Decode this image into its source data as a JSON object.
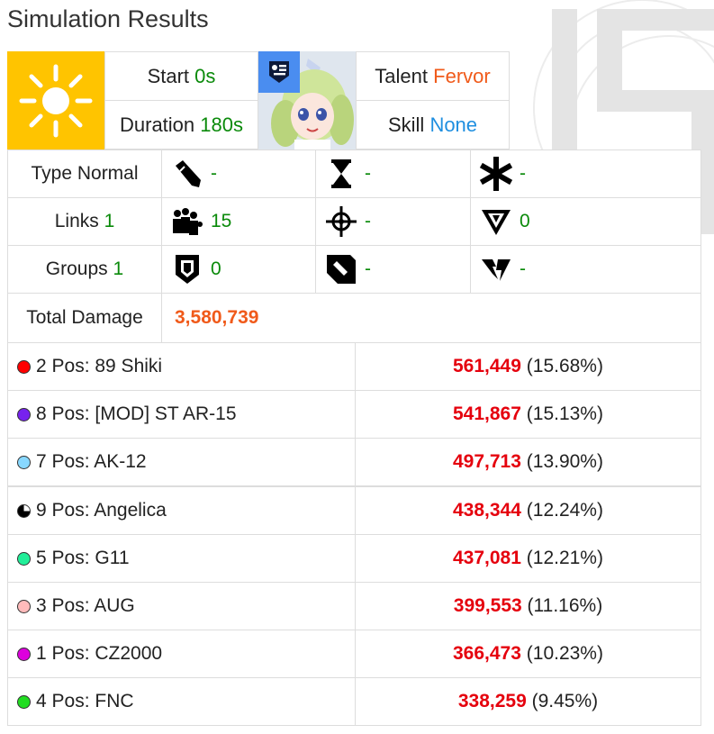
{
  "title": "Simulation Results",
  "header": {
    "start_label": "Start",
    "start_value": "0s",
    "duration_label": "Duration",
    "duration_value": "180s",
    "talent_label": "Talent",
    "talent_value": "Fervor",
    "skill_label": "Skill",
    "skill_value": "None",
    "sun_icon": "sun-icon",
    "rank_icon": "rank-badge-icon",
    "commander_image": "commander-portrait"
  },
  "stats": {
    "type_label": "Type",
    "type_value": "Normal",
    "links_label": "Links",
    "links_value": "1",
    "groups_label": "Groups",
    "groups_value": "1",
    "cells": [
      {
        "icon": "bullet-icon",
        "value": "-"
      },
      {
        "icon": "hourglass-icon",
        "value": "-"
      },
      {
        "icon": "asterisk-icon",
        "value": "-"
      },
      {
        "icon": "group-icon",
        "value": "15"
      },
      {
        "icon": "crosshair-icon",
        "value": "-"
      },
      {
        "icon": "armor-pierce-icon",
        "value": "0"
      },
      {
        "icon": "shield-icon",
        "value": "0"
      },
      {
        "icon": "shotgun-shell-icon",
        "value": "-"
      },
      {
        "icon": "broken-chevron-icon",
        "value": "-"
      }
    ]
  },
  "total": {
    "label": "Total Damage",
    "value": "3,580,739"
  },
  "rows": [
    {
      "color": "#ff0000",
      "fill": "full",
      "name": "2 Pos: 89 Shiki",
      "damage": "561,449",
      "percent": "(15.68%)"
    },
    {
      "color": "#7722ee",
      "fill": "full",
      "name": "8 Pos: [MOD] ST AR-15",
      "damage": "541,867",
      "percent": "(15.13%)"
    },
    {
      "color": "#88d8ff",
      "fill": "full",
      "name": "7 Pos: AK-12",
      "damage": "497,713",
      "percent": "(13.90%)"
    },
    {
      "color": "#000000",
      "fill": "quarter",
      "name": "9 Pos: Angelica",
      "damage": "438,344",
      "percent": "(12.24%)"
    },
    {
      "color": "#22ee99",
      "fill": "full",
      "name": "5 Pos: G11",
      "damage": "437,081",
      "percent": "(12.21%)"
    },
    {
      "color": "#ffbbbb",
      "fill": "full",
      "name": "3 Pos: AUG",
      "damage": "399,553",
      "percent": "(11.16%)"
    },
    {
      "color": "#dd00dd",
      "fill": "full",
      "name": "1 Pos: CZ2000",
      "damage": "366,473",
      "percent": "(10.23%)"
    },
    {
      "color": "#22dd22",
      "fill": "full",
      "name": "4 Pos: FNC",
      "damage": "338,259",
      "percent": "(9.45%)"
    }
  ]
}
